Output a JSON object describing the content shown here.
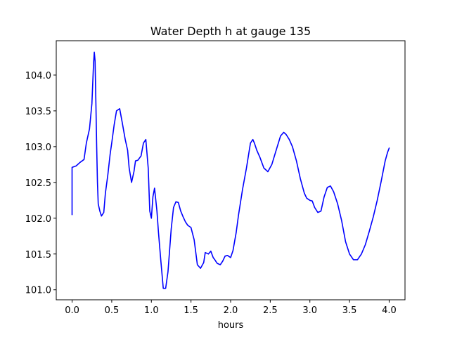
{
  "chart_data": {
    "type": "line",
    "title": "Water Depth h at gauge 135",
    "xlabel": "hours",
    "ylabel": "",
    "xlim": [
      -0.2,
      4.2
    ],
    "ylim": [
      100.86,
      104.48
    ],
    "x_ticks": [
      0.0,
      0.5,
      1.0,
      1.5,
      2.0,
      2.5,
      3.0,
      3.5,
      4.0
    ],
    "x_tick_labels": [
      "0.0",
      "0.5",
      "1.0",
      "1.5",
      "2.0",
      "2.5",
      "3.0",
      "3.5",
      "4.0"
    ],
    "y_ticks": [
      101.0,
      101.5,
      102.0,
      102.5,
      103.0,
      103.5,
      104.0
    ],
    "y_tick_labels": [
      "101.0",
      "101.5",
      "102.0",
      "102.5",
      "103.0",
      "103.5",
      "104.0"
    ],
    "grid": false,
    "series": [
      {
        "color": "#0000ff",
        "x": [
          0.0,
          0.0,
          0.05,
          0.1,
          0.15,
          0.18,
          0.22,
          0.25,
          0.27,
          0.28,
          0.29,
          0.3,
          0.31,
          0.32,
          0.33,
          0.35,
          0.37,
          0.4,
          0.42,
          0.45,
          0.48,
          0.5,
          0.53,
          0.56,
          0.6,
          0.63,
          0.67,
          0.7,
          0.72,
          0.75,
          0.78,
          0.8,
          0.83,
          0.87,
          0.9,
          0.93,
          0.96,
          0.98,
          1.0,
          1.02,
          1.04,
          1.07,
          1.09,
          1.12,
          1.15,
          1.18,
          1.21,
          1.23,
          1.25,
          1.28,
          1.31,
          1.34,
          1.37,
          1.4,
          1.43,
          1.46,
          1.5,
          1.54,
          1.58,
          1.62,
          1.66,
          1.68,
          1.72,
          1.75,
          1.78,
          1.8,
          1.83,
          1.87,
          1.9,
          1.93,
          1.96,
          2.0,
          2.03,
          2.07,
          2.1,
          2.15,
          2.2,
          2.25,
          2.28,
          2.3,
          2.33,
          2.37,
          2.42,
          2.47,
          2.52,
          2.58,
          2.63,
          2.67,
          2.7,
          2.74,
          2.78,
          2.83,
          2.88,
          2.93,
          2.96,
          3.0,
          3.03,
          3.06,
          3.1,
          3.14,
          3.18,
          3.22,
          3.26,
          3.3,
          3.35,
          3.4,
          3.45,
          3.5,
          3.55,
          3.6,
          3.65,
          3.7,
          3.75,
          3.8,
          3.85,
          3.9,
          3.95,
          3.98,
          4.0
        ],
        "y": [
          102.05,
          102.71,
          102.73,
          102.78,
          102.82,
          103.05,
          103.25,
          103.6,
          104.15,
          104.32,
          104.2,
          103.6,
          103.0,
          102.5,
          102.2,
          102.1,
          102.03,
          102.08,
          102.35,
          102.6,
          102.9,
          103.05,
          103.3,
          103.5,
          103.53,
          103.35,
          103.1,
          102.95,
          102.7,
          102.5,
          102.65,
          102.8,
          102.81,
          102.87,
          103.05,
          103.1,
          102.7,
          102.1,
          102.0,
          102.3,
          102.42,
          102.1,
          101.8,
          101.4,
          101.02,
          101.02,
          101.25,
          101.55,
          101.85,
          102.15,
          102.23,
          102.22,
          102.1,
          102.02,
          101.95,
          101.9,
          101.87,
          101.7,
          101.35,
          101.3,
          101.38,
          101.52,
          101.5,
          101.54,
          101.45,
          101.42,
          101.37,
          101.35,
          101.4,
          101.47,
          101.48,
          101.45,
          101.55,
          101.8,
          102.05,
          102.4,
          102.7,
          103.05,
          103.1,
          103.05,
          102.95,
          102.85,
          102.7,
          102.65,
          102.75,
          102.97,
          103.15,
          103.2,
          103.17,
          103.1,
          103.0,
          102.8,
          102.55,
          102.35,
          102.28,
          102.25,
          102.24,
          102.15,
          102.08,
          102.1,
          102.3,
          102.43,
          102.45,
          102.37,
          102.2,
          101.97,
          101.67,
          101.5,
          101.42,
          101.42,
          101.5,
          101.63,
          101.82,
          102.02,
          102.25,
          102.52,
          102.8,
          102.92,
          102.98
        ]
      }
    ]
  }
}
